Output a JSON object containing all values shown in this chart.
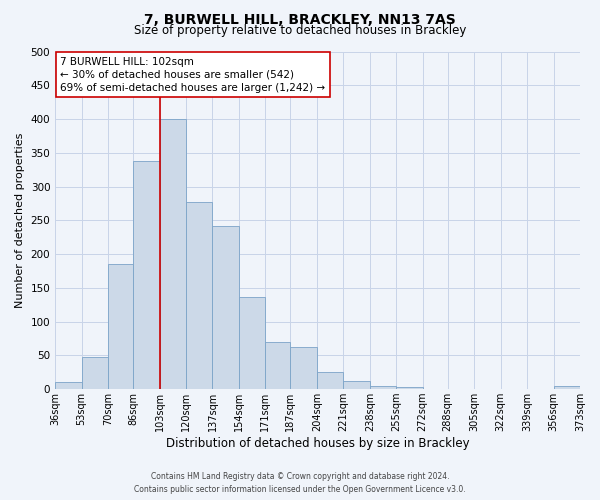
{
  "title": "7, BURWELL HILL, BRACKLEY, NN13 7AS",
  "subtitle": "Size of property relative to detached houses in Brackley",
  "xlabel": "Distribution of detached houses by size in Brackley",
  "ylabel": "Number of detached properties",
  "bins": [
    36,
    53,
    70,
    86,
    103,
    120,
    137,
    154,
    171,
    187,
    204,
    221,
    238,
    255,
    272,
    288,
    305,
    322,
    339,
    356,
    373
  ],
  "bin_labels": [
    "36sqm",
    "53sqm",
    "70sqm",
    "86sqm",
    "103sqm",
    "120sqm",
    "137sqm",
    "154sqm",
    "171sqm",
    "187sqm",
    "204sqm",
    "221sqm",
    "238sqm",
    "255sqm",
    "272sqm",
    "288sqm",
    "305sqm",
    "322sqm",
    "339sqm",
    "356sqm",
    "373sqm"
  ],
  "counts": [
    10,
    47,
    185,
    338,
    400,
    277,
    242,
    137,
    70,
    62,
    26,
    12,
    5,
    3,
    0,
    0,
    0,
    0,
    0,
    4
  ],
  "bar_color": "#ccd9e8",
  "bar_edge_color": "#7ba3c8",
  "vline_x": 103,
  "vline_color": "#cc0000",
  "annotation_line1": "7 BURWELL HILL: 102sqm",
  "annotation_line2": "← 30% of detached houses are smaller (542)",
  "annotation_line3": "69% of semi-detached houses are larger (1,242) →",
  "annotation_box_facecolor": "#ffffff",
  "annotation_box_edgecolor": "#cc0000",
  "ylim": [
    0,
    500
  ],
  "yticks": [
    0,
    50,
    100,
    150,
    200,
    250,
    300,
    350,
    400,
    450,
    500
  ],
  "grid_color": "#c8d4e8",
  "footnote1": "Contains HM Land Registry data © Crown copyright and database right 2024.",
  "footnote2": "Contains public sector information licensed under the Open Government Licence v3.0.",
  "bg_color": "#f0f4fa",
  "title_fontsize": 10,
  "subtitle_fontsize": 8.5,
  "ylabel_fontsize": 8,
  "xlabel_fontsize": 8.5,
  "tick_fontsize": 7,
  "annot_fontsize": 7.5,
  "footnote_fontsize": 5.5
}
